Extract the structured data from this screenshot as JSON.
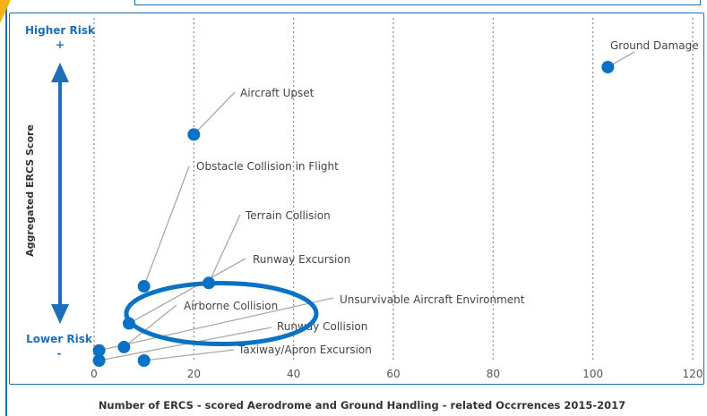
{
  "chart_data": {
    "type": "scatter",
    "xlabel": "Number of ERCS - scored Aerodrome and Ground Handling - related Occrrences 2015-2017",
    "ylabel": "Aggregated ERCS Score",
    "xlim": [
      0,
      120
    ],
    "x_ticks": [
      0,
      20,
      40,
      60,
      80,
      100,
      120
    ],
    "x_tick_labels": [
      "0",
      "20",
      "40",
      "60",
      "80",
      "100",
      "120"
    ],
    "grid": "vertical dotted",
    "risk_scale": {
      "high_label": "Higher Risk",
      "high_sign": "+",
      "low_label": "Lower Risk",
      "low_sign": "-"
    },
    "series": [
      {
        "color": "#0a72c4",
        "points": [
          {
            "x": 103,
            "risk": 0.87,
            "label": "Ground Damage"
          },
          {
            "x": 20,
            "risk": 0.67,
            "label": "Aircraft Upset"
          },
          {
            "x": 10,
            "risk": 0.22,
            "label": "Obstacle Collision in Flight"
          },
          {
            "x": 23,
            "risk": 0.23,
            "label": "Terrain Collision"
          },
          {
            "x": 7,
            "risk": 0.11,
            "label": "Runway Excursion"
          },
          {
            "x": 1,
            "risk": 0.03,
            "label": "Unsurvivable Aircraft Environment"
          },
          {
            "x": 6,
            "risk": 0.04,
            "label": "Airborne Collision"
          },
          {
            "x": 1,
            "risk": 0.0,
            "label": "Runway Collision"
          },
          {
            "x": 10,
            "risk": 0.0,
            "label": "Taxiway/Apron Excursion"
          }
        ]
      }
    ],
    "highlight": {
      "shape": "ellipse",
      "color": "#0a72c4",
      "around": "Runway Excursion"
    }
  }
}
